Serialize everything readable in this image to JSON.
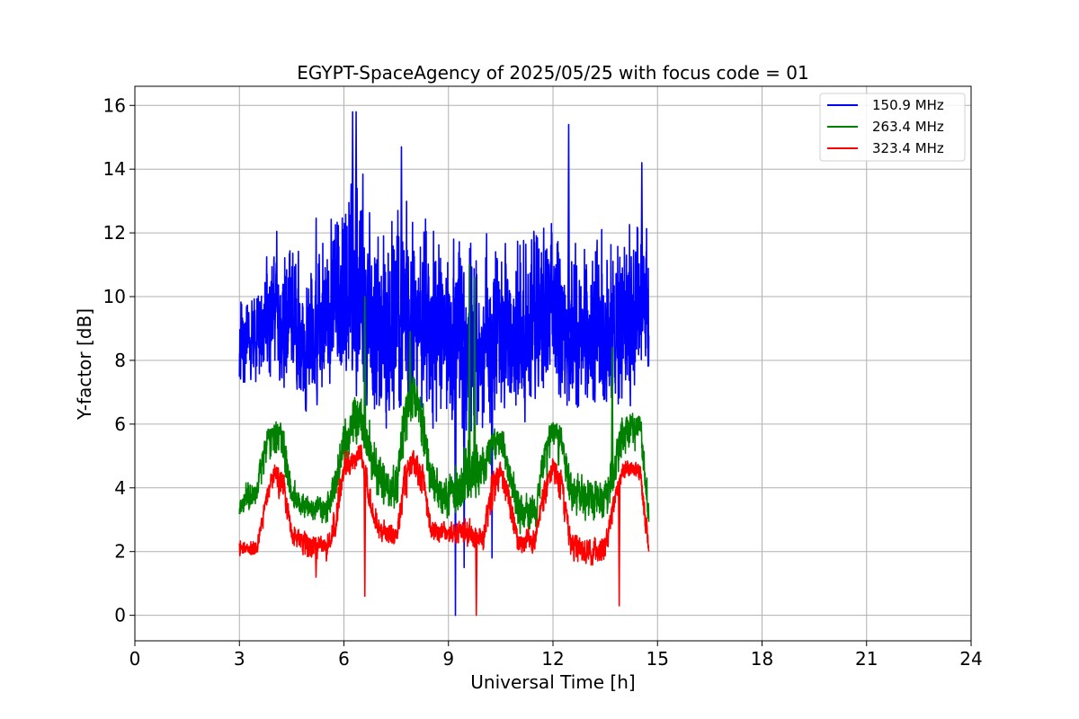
{
  "chart_data": {
    "type": "line",
    "title": "EGYPT-SpaceAgency of 2025/05/25 with focus code = 01",
    "xlabel": "Universal Time [h]",
    "ylabel": "Y-factor [dB]",
    "xlim": [
      0,
      24
    ],
    "ylim": [
      -0.8,
      16.6
    ],
    "xticks": [
      0,
      3,
      6,
      9,
      12,
      15,
      18,
      21,
      24
    ],
    "yticks": [
      0,
      2,
      4,
      6,
      8,
      10,
      12,
      14,
      16
    ],
    "grid": true,
    "legend_position": "top-right",
    "x_range_of_data": [
      3.0,
      14.75
    ],
    "series": [
      {
        "name": "150.9 MHz",
        "color": "#0000ff",
        "baseline": [
          [
            3.0,
            8.6
          ],
          [
            3.5,
            9.0
          ],
          [
            4.0,
            9.8
          ],
          [
            4.5,
            9.2
          ],
          [
            5.0,
            8.6
          ],
          [
            5.5,
            9.3
          ],
          [
            6.0,
            9.8
          ],
          [
            6.5,
            10.2
          ],
          [
            7.0,
            9.0
          ],
          [
            7.5,
            8.8
          ],
          [
            8.0,
            9.6
          ],
          [
            8.5,
            9.0
          ],
          [
            9.0,
            8.6
          ],
          [
            9.5,
            8.4
          ],
          [
            10.0,
            8.8
          ],
          [
            10.5,
            8.8
          ],
          [
            11.0,
            8.6
          ],
          [
            11.5,
            9.0
          ],
          [
            12.0,
            9.6
          ],
          [
            12.5,
            8.8
          ],
          [
            13.0,
            8.8
          ],
          [
            13.5,
            8.8
          ],
          [
            14.0,
            9.0
          ],
          [
            14.5,
            9.6
          ],
          [
            14.75,
            9.2
          ]
        ],
        "envelope": [
          [
            3.0,
            7.0,
            10.8
          ],
          [
            3.5,
            6.8,
            11.2
          ],
          [
            4.0,
            6.8,
            12.8
          ],
          [
            4.5,
            6.4,
            12.5
          ],
          [
            5.0,
            5.8,
            13.2
          ],
          [
            5.5,
            6.6,
            13.6
          ],
          [
            6.0,
            7.0,
            14.6
          ],
          [
            6.5,
            6.0,
            15.8
          ],
          [
            7.0,
            4.8,
            13.2
          ],
          [
            7.5,
            5.0,
            14.6
          ],
          [
            8.0,
            5.6,
            14.2
          ],
          [
            8.5,
            5.0,
            13.8
          ],
          [
            9.0,
            4.6,
            13.2
          ],
          [
            9.5,
            4.8,
            12.6
          ],
          [
            10.0,
            5.0,
            13.0
          ],
          [
            10.5,
            5.6,
            13.2
          ],
          [
            11.0,
            5.4,
            13.6
          ],
          [
            11.5,
            6.0,
            13.6
          ],
          [
            12.0,
            6.4,
            14.0
          ],
          [
            12.5,
            5.6,
            13.0
          ],
          [
            13.0,
            5.6,
            12.6
          ],
          [
            13.5,
            5.4,
            13.6
          ],
          [
            14.0,
            5.8,
            13.8
          ],
          [
            14.5,
            6.6,
            14.2
          ],
          [
            14.75,
            7.0,
            12.6
          ]
        ],
        "extreme_points": [
          [
            6.25,
            15.8
          ],
          [
            6.35,
            15.8
          ],
          [
            7.65,
            14.7
          ],
          [
            9.2,
            0.0
          ],
          [
            9.45,
            1.5
          ],
          [
            10.25,
            1.8
          ],
          [
            12.45,
            15.4
          ],
          [
            14.55,
            14.2
          ]
        ]
      },
      {
        "name": "263.4 MHz",
        "color": "#008000",
        "baseline": [
          [
            3.0,
            3.4
          ],
          [
            3.5,
            3.9
          ],
          [
            3.75,
            5.6
          ],
          [
            4.0,
            5.8
          ],
          [
            4.25,
            5.8
          ],
          [
            4.5,
            3.7
          ],
          [
            5.0,
            3.4
          ],
          [
            5.5,
            3.3
          ],
          [
            5.75,
            4.0
          ],
          [
            6.0,
            5.5
          ],
          [
            6.5,
            6.3
          ],
          [
            6.75,
            5.0
          ],
          [
            7.0,
            4.3
          ],
          [
            7.5,
            4.0
          ],
          [
            7.75,
            6.8
          ],
          [
            8.0,
            7.3
          ],
          [
            8.25,
            6.5
          ],
          [
            8.5,
            4.2
          ],
          [
            9.0,
            3.8
          ],
          [
            9.5,
            4.2
          ],
          [
            10.0,
            4.6
          ],
          [
            10.25,
            5.6
          ],
          [
            10.5,
            5.6
          ],
          [
            10.75,
            4.4
          ],
          [
            11.0,
            3.4
          ],
          [
            11.5,
            3.2
          ],
          [
            11.75,
            5.4
          ],
          [
            12.0,
            5.8
          ],
          [
            12.25,
            5.6
          ],
          [
            12.5,
            4.0
          ],
          [
            13.0,
            3.7
          ],
          [
            13.5,
            3.8
          ],
          [
            13.75,
            4.6
          ],
          [
            14.0,
            5.8
          ],
          [
            14.5,
            6.0
          ],
          [
            14.75,
            3.0
          ]
        ],
        "envelope": [
          [
            3.0,
            3.0,
            4.1
          ],
          [
            3.5,
            3.4,
            4.8
          ],
          [
            4.0,
            5.0,
            6.4
          ],
          [
            4.5,
            3.2,
            4.6
          ],
          [
            5.0,
            2.8,
            3.9
          ],
          [
            5.5,
            2.6,
            3.8
          ],
          [
            6.0,
            4.6,
            6.6
          ],
          [
            6.5,
            5.2,
            7.6
          ],
          [
            7.0,
            3.2,
            5.4
          ],
          [
            7.5,
            3.0,
            5.0
          ],
          [
            8.0,
            6.0,
            8.0
          ],
          [
            8.5,
            3.2,
            5.2
          ],
          [
            9.0,
            2.8,
            4.6
          ],
          [
            9.5,
            3.0,
            6.2
          ],
          [
            10.0,
            3.8,
            5.4
          ],
          [
            10.5,
            5.0,
            6.2
          ],
          [
            11.0,
            2.4,
            4.2
          ],
          [
            11.5,
            2.4,
            3.8
          ],
          [
            12.0,
            5.0,
            6.5
          ],
          [
            12.5,
            3.0,
            4.8
          ],
          [
            13.0,
            2.8,
            4.6
          ],
          [
            13.5,
            2.6,
            4.4
          ],
          [
            14.0,
            4.8,
            6.8
          ],
          [
            14.5,
            5.0,
            6.4
          ],
          [
            14.75,
            2.8,
            4.6
          ]
        ],
        "extreme_points": [
          [
            6.6,
            10.0
          ],
          [
            7.9,
            8.9
          ],
          [
            9.6,
            11.0
          ],
          [
            9.75,
            10.6
          ],
          [
            13.7,
            8.4
          ]
        ]
      },
      {
        "name": "323.4 MHz",
        "color": "#ff0000",
        "baseline": [
          [
            3.0,
            2.1
          ],
          [
            3.5,
            2.0
          ],
          [
            3.75,
            3.6
          ],
          [
            4.0,
            4.6
          ],
          [
            4.25,
            4.5
          ],
          [
            4.5,
            2.5
          ],
          [
            5.0,
            2.3
          ],
          [
            5.5,
            2.2
          ],
          [
            5.75,
            2.5
          ],
          [
            6.0,
            4.6
          ],
          [
            6.5,
            5.1
          ],
          [
            6.75,
            3.3
          ],
          [
            7.0,
            2.7
          ],
          [
            7.5,
            2.5
          ],
          [
            7.75,
            4.6
          ],
          [
            8.0,
            5.0
          ],
          [
            8.25,
            4.6
          ],
          [
            8.5,
            2.8
          ],
          [
            9.0,
            2.6
          ],
          [
            9.5,
            2.6
          ],
          [
            10.0,
            2.4
          ],
          [
            10.25,
            4.4
          ],
          [
            10.5,
            4.6
          ],
          [
            10.75,
            3.8
          ],
          [
            11.0,
            2.3
          ],
          [
            11.5,
            2.4
          ],
          [
            11.75,
            4.2
          ],
          [
            12.0,
            4.7
          ],
          [
            12.25,
            4.4
          ],
          [
            12.5,
            2.3
          ],
          [
            13.0,
            2.0
          ],
          [
            13.5,
            2.1
          ],
          [
            13.75,
            3.6
          ],
          [
            14.0,
            4.6
          ],
          [
            14.5,
            4.6
          ],
          [
            14.75,
            2.0
          ]
        ],
        "envelope": [
          [
            3.0,
            1.8,
            2.6
          ],
          [
            3.5,
            1.8,
            2.6
          ],
          [
            4.0,
            4.0,
            5.0
          ],
          [
            4.5,
            2.0,
            3.0
          ],
          [
            5.0,
            1.6,
            2.6
          ],
          [
            5.5,
            1.6,
            2.6
          ],
          [
            6.0,
            4.2,
            5.4
          ],
          [
            6.5,
            4.6,
            5.6
          ],
          [
            7.0,
            2.2,
            3.2
          ],
          [
            7.5,
            2.0,
            3.0
          ],
          [
            8.0,
            4.4,
            5.6
          ],
          [
            8.5,
            2.2,
            3.2
          ],
          [
            9.0,
            2.2,
            3.0
          ],
          [
            9.5,
            2.0,
            3.2
          ],
          [
            10.0,
            1.8,
            3.0
          ],
          [
            10.5,
            4.0,
            5.0
          ],
          [
            11.0,
            1.8,
            2.8
          ],
          [
            11.5,
            1.8,
            2.8
          ],
          [
            12.0,
            4.2,
            5.2
          ],
          [
            12.5,
            1.6,
            2.8
          ],
          [
            13.0,
            1.4,
            2.6
          ],
          [
            13.5,
            1.6,
            2.6
          ],
          [
            14.0,
            4.2,
            5.0
          ],
          [
            14.5,
            4.0,
            4.9
          ],
          [
            14.75,
            1.6,
            2.6
          ]
        ],
        "extreme_points": [
          [
            5.2,
            1.2
          ],
          [
            6.6,
            0.6
          ],
          [
            9.8,
            0.0
          ],
          [
            13.9,
            0.3
          ]
        ]
      }
    ]
  }
}
